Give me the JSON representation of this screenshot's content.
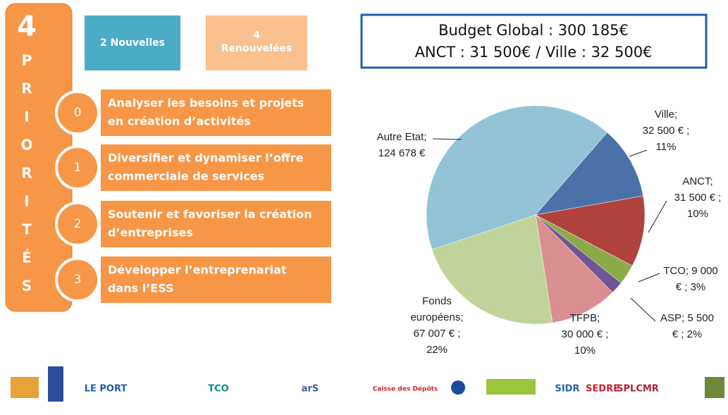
{
  "priorites": {
    "number": "4",
    "letters": [
      "P",
      "R",
      "I",
      "O",
      "R",
      "I",
      "T",
      "É",
      "S"
    ]
  },
  "tags": {
    "new": "2 Nouvelles",
    "renewed": [
      "4",
      "Renouvelées"
    ]
  },
  "priorities": [
    {
      "index": "0",
      "lines": [
        "Analyser les besoins et projets",
        "en création d’activités"
      ]
    },
    {
      "index": "1",
      "lines": [
        "Diversifier et dynamiser l’offre",
        "commerciale de services"
      ]
    },
    {
      "index": "2",
      "lines": [
        "Soutenir et favoriser la création",
        "d’entreprises"
      ]
    },
    {
      "index": "3",
      "lines": [
        "Développer l’entreprenariat",
        "dans l’ESS"
      ]
    }
  ],
  "budget": [
    "Budget Global : 300 185€",
    "ANCT : 31 500€ / Ville : 32 500€"
  ],
  "chart_data": {
    "type": "pie",
    "categories": [
      "Ville",
      "ANCT",
      "TCO",
      "ASP",
      "TFPB",
      "Fonds européens",
      "Autre Etat"
    ],
    "values": [
      32500,
      31500,
      9000,
      5500,
      30000,
      67007,
      124678
    ],
    "value_labels": [
      [
        "Ville;",
        "32 500 € ;",
        "11%"
      ],
      [
        "ANCT;",
        "31 500 € ;",
        "10%"
      ],
      [
        "TCO;  9 000",
        "€ ; 3%"
      ],
      [
        "ASP;  5 500",
        "€ ; 2%"
      ],
      [
        "TFPB;",
        "30 000 € ;",
        "10%"
      ],
      [
        "Fonds",
        "européens;",
        "67 007 € ;",
        "22%"
      ],
      [
        "Autre Etat;",
        "124 678 €"
      ]
    ],
    "colors": [
      "#4a72a8",
      "#b0423e",
      "#8caa4a",
      "#6f5596",
      "#d98f8f",
      "#bfd39a",
      "#93c3d6"
    ]
  },
  "logos": [
    "LE PORT",
    "TCO",
    "arS",
    "Caisse des Dépôts",
    "SIDR",
    "SEDRE",
    "SPLCMR"
  ]
}
